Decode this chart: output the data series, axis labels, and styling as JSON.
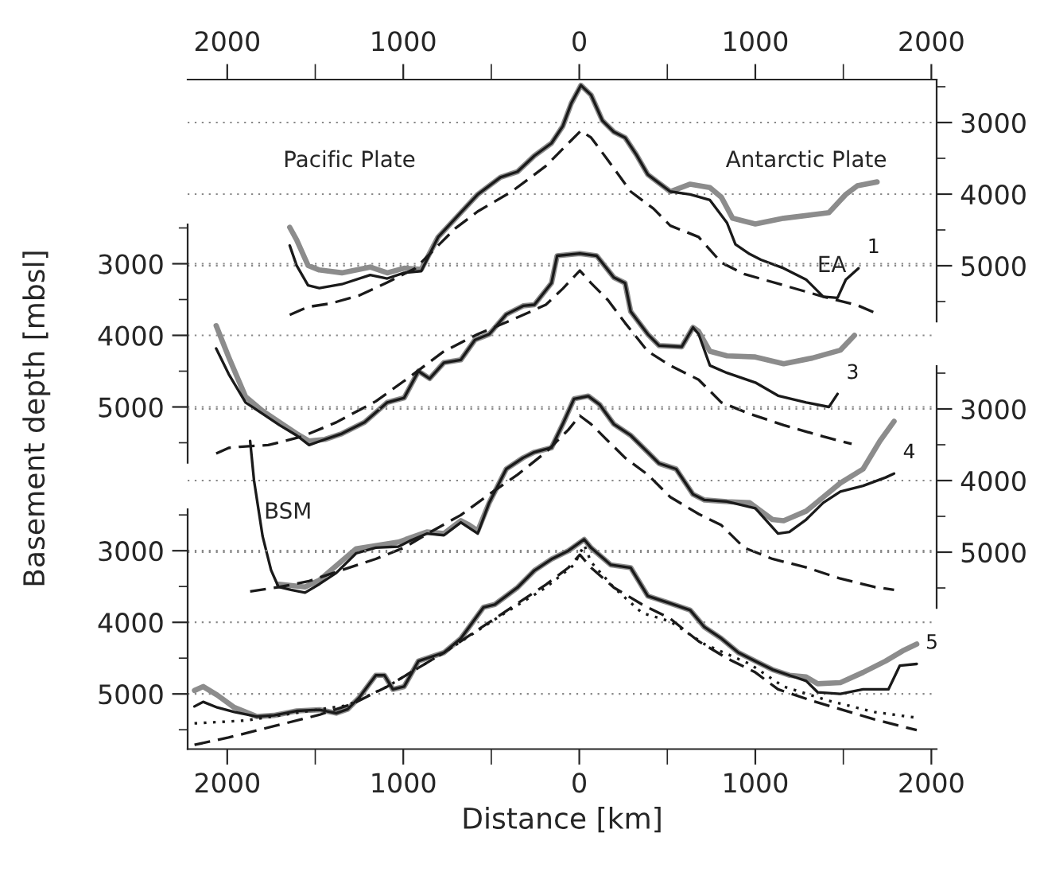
{
  "chart_data": [
    {
      "type": "line",
      "ylabel": "Basement depth [mbsl]",
      "xlim": [
        -2225,
        2030
      ],
      "x2lim": [
        -2225,
        2030
      ],
      "x2ticks": [
        {
          "value": -2000,
          "label": "2000"
        },
        {
          "value": -1500,
          "label": null
        },
        {
          "value": -1000,
          "label": "1000"
        },
        {
          "value": -500,
          "label": null
        },
        0,
        {
          "value": 500,
          "label": null
        },
        1000,
        {
          "value": 1500,
          "label": null
        },
        2000
      ],
      "ylim": [
        5780,
        2400
      ],
      "yticks": [
        {
          "value": 2500,
          "label": null
        },
        3000,
        {
          "value": 3500,
          "label": null
        },
        4000,
        {
          "value": 4500,
          "label": null
        },
        5000,
        {
          "value": 5500,
          "label": null
        }
      ],
      "grid": "y",
      "tick_labels": "y",
      "annotations": [
        "Pacific Plate",
        "Antarctic Plate",
        "EA"
      ],
      "series": [
        {
          "color": "#8c8c8c",
          "line_style": "solid",
          "x": [
            -1645,
            -1606,
            -1541,
            -1477,
            -1349,
            -1188,
            -1091,
            -995,
            -898,
            -802,
            -673,
            -577,
            -448,
            -351,
            -255,
            -158,
            -94,
            -46,
            9,
            67,
            131,
            196,
            260,
            324,
            389,
            453,
            517,
            630,
            742,
            807,
            871,
            1000,
            1161,
            1418,
            1514,
            1579,
            1692
          ],
          "values": [
            4464,
            4638,
            4996,
            5059,
            5099,
            5019,
            5099,
            5035,
            5051,
            4599,
            4258,
            4004,
            3765,
            3686,
            3464,
            3289,
            3051,
            2734,
            2480,
            2615,
            2972,
            3130,
            3210,
            3448,
            3726,
            3845,
            3964,
            3861,
            3908,
            4043,
            4337,
            4416,
            4337,
            4258,
            4004,
            3884,
            3829
          ]
        },
        {
          "name": "1",
          "color": "#1a1a1a",
          "line_style": "solid",
          "x": [
            -1645,
            -1606,
            -1541,
            -1477,
            -1349,
            -1188,
            -1091,
            -995,
            -898,
            -802,
            -673,
            -577,
            -448,
            -351,
            -255,
            -158,
            -94,
            -46,
            9,
            67,
            131,
            196,
            260,
            324,
            389,
            453,
            517,
            630,
            742,
            839,
            887,
            968,
            1032,
            1161,
            1289,
            1386,
            1467,
            1514,
            1586
          ],
          "values": [
            4718,
            4996,
            5273,
            5313,
            5258,
            5130,
            5178,
            5099,
            5075,
            4599,
            4258,
            4004,
            3765,
            3686,
            3464,
            3289,
            3051,
            2734,
            2480,
            2615,
            2972,
            3130,
            3210,
            3448,
            3726,
            3845,
            3964,
            4004,
            4083,
            4400,
            4702,
            4837,
            4916,
            5035,
            5194,
            5432,
            5448,
            5194,
            5035
          ]
        },
        {
          "color": "#1a1a1a",
          "line_style": "dashed",
          "x": [
            -1645,
            -1541,
            -1413,
            -1252,
            -1091,
            -931,
            -834,
            -705,
            -577,
            -384,
            -190,
            -62,
            9,
            67,
            163,
            292,
            421,
            517,
            678,
            807,
            936,
            1161,
            1386,
            1579,
            1692
          ],
          "values": [
            5686,
            5575,
            5527,
            5416,
            5234,
            5035,
            4797,
            4480,
            4242,
            3964,
            3607,
            3289,
            3115,
            3210,
            3527,
            3964,
            4202,
            4440,
            4599,
            4956,
            5115,
            5273,
            5432,
            5551,
            5670
          ]
        }
      ]
    },
    {
      "type": "line",
      "xlim": [
        -2225,
        2030
      ],
      "ylim": [
        5780,
        2450
      ],
      "yticks": [
        {
          "value": 2500,
          "label": null
        },
        3000,
        {
          "value": 3500,
          "label": null
        },
        4000,
        {
          "value": 4500,
          "label": null
        },
        5000,
        {
          "value": 5500,
          "label": null
        }
      ],
      "grid": "y",
      "tick_labels": "y",
      "series": [
        {
          "color": "#8c8c8c",
          "line_style": "solid",
          "x": [
            -2063,
            -1992,
            -1896,
            -1799,
            -1703,
            -1606,
            -1535,
            -1445,
            -1349,
            -1220,
            -1091,
            -995,
            -914,
            -850,
            -769,
            -673,
            -593,
            -512,
            -415,
            -319,
            -255,
            -158,
            -126,
            3,
            99,
            196,
            260,
            292,
            389,
            453,
            582,
            646,
            678,
            742,
            839,
            1000,
            1161,
            1322,
            1483,
            1563
          ],
          "values": [
            3865,
            4302,
            4857,
            5056,
            5215,
            5373,
            5476,
            5453,
            5373,
            5215,
            4937,
            4873,
            4500,
            4603,
            4381,
            4342,
            4064,
            3984,
            3707,
            3588,
            3572,
            3270,
            2889,
            2857,
            2889,
            3191,
            3270,
            3667,
            3984,
            4143,
            4159,
            3889,
            3945,
            4223,
            4286,
            4302,
            4397,
            4318,
            4207,
            4000
          ]
        },
        {
          "name": "3",
          "color": "#1a1a1a",
          "line_style": "solid",
          "x": [
            -2063,
            -1992,
            -1896,
            -1799,
            -1703,
            -1606,
            -1535,
            -1445,
            -1349,
            -1220,
            -1091,
            -995,
            -914,
            -850,
            -769,
            -673,
            -593,
            -512,
            -415,
            -319,
            -255,
            -158,
            -126,
            3,
            99,
            196,
            260,
            292,
            389,
            453,
            582,
            646,
            678,
            742,
            839,
            1000,
            1129,
            1289,
            1418,
            1467
          ],
          "values": [
            4183,
            4540,
            4937,
            5096,
            5254,
            5397,
            5532,
            5453,
            5373,
            5215,
            4937,
            4873,
            4500,
            4603,
            4381,
            4342,
            4064,
            3984,
            3707,
            3588,
            3572,
            3270,
            2889,
            2857,
            2889,
            3191,
            3270,
            3667,
            3984,
            4143,
            4159,
            3889,
            3984,
            4421,
            4524,
            4659,
            4842,
            4937,
            5000,
            4818
          ]
        },
        {
          "color": "#1a1a1a",
          "line_style": "dashed",
          "x": [
            -2063,
            -1992,
            -1928,
            -1767,
            -1574,
            -1381,
            -1156,
            -963,
            -769,
            -577,
            -384,
            -190,
            -94,
            3,
            67,
            163,
            260,
            389,
            517,
            678,
            807,
            968,
            1161,
            1386,
            1547
          ],
          "values": [
            5651,
            5572,
            5556,
            5532,
            5413,
            5215,
            4921,
            4580,
            4223,
            3984,
            3786,
            3572,
            3349,
            3095,
            3270,
            3508,
            3826,
            4223,
            4421,
            4619,
            4937,
            5096,
            5254,
            5413,
            5516
          ]
        }
      ]
    },
    {
      "type": "line",
      "annotations": [
        "BSM"
      ],
      "xlim": [
        -2225,
        2030
      ],
      "ylim": [
        5780,
        2400
      ],
      "yticks": [
        {
          "value": 2500,
          "label": null
        },
        3000,
        {
          "value": 3500,
          "label": null
        },
        4000,
        {
          "value": 4500,
          "label": null
        },
        5000,
        {
          "value": 5500,
          "label": null
        }
      ],
      "grid": "y",
      "tick_labels": "y",
      "series": [
        {
          "color": "#8c8c8c",
          "line_style": "solid",
          "x": [
            -1709,
            -1558,
            -1477,
            -1268,
            -1027,
            -866,
            -769,
            -673,
            -625,
            -577,
            -512,
            -415,
            -319,
            -255,
            -158,
            -94,
            -30,
            51,
            115,
            196,
            292,
            389,
            453,
            550,
            646,
            711,
            839,
            968,
            1097,
            1161,
            1289,
            1386,
            1483,
            1612,
            1708,
            1788
          ],
          "values": [
            5447,
            5486,
            5392,
            4953,
            4859,
            4718,
            4741,
            4561,
            4623,
            4702,
            4310,
            3839,
            3682,
            3604,
            3541,
            3212,
            2859,
            2820,
            2937,
            3212,
            3369,
            3604,
            3761,
            3839,
            4192,
            4271,
            4294,
            4310,
            4545,
            4561,
            4427,
            4231,
            4035,
            3839,
            3447,
            3173
          ]
        },
        {
          "name": "4",
          "color": "#1a1a1a",
          "line_style": "solid",
          "x": [
            -1870,
            -1848,
            -1799,
            -1751,
            -1709,
            -1638,
            -1558,
            -1477,
            -1381,
            -1268,
            -1156,
            -1027,
            -963,
            -866,
            -769,
            -673,
            -625,
            -577,
            -512,
            -415,
            -319,
            -255,
            -158,
            -94,
            -30,
            51,
            115,
            196,
            292,
            389,
            453,
            550,
            646,
            711,
            839,
            1000,
            1129,
            1193,
            1289,
            1386,
            1483,
            1612,
            1740,
            1788
          ],
          "values": [
            3447,
            3996,
            4780,
            5251,
            5486,
            5526,
            5565,
            5447,
            5290,
            5016,
            4937,
            4922,
            4843,
            4741,
            4764,
            4584,
            4663,
            4741,
            4310,
            3839,
            3682,
            3604,
            3541,
            3212,
            2859,
            2820,
            2937,
            3212,
            3369,
            3604,
            3761,
            3839,
            4192,
            4271,
            4294,
            4388,
            4741,
            4718,
            4545,
            4310,
            4153,
            4074,
            3957,
            3902
          ]
        },
        {
          "color": "#1a1a1a",
          "line_style": "dashed",
          "x": [
            -1870,
            -1703,
            -1541,
            -1349,
            -1156,
            -995,
            -834,
            -673,
            -512,
            -351,
            -190,
            -62,
            3,
            67,
            163,
            260,
            389,
            517,
            678,
            807,
            936,
            1097,
            1289,
            1483,
            1676,
            1788
          ],
          "values": [
            5549,
            5486,
            5408,
            5251,
            5094,
            4937,
            4702,
            4482,
            4192,
            3918,
            3604,
            3290,
            3094,
            3212,
            3447,
            3682,
            3918,
            4231,
            4467,
            4623,
            4937,
            5094,
            5212,
            5369,
            5486,
            5526
          ]
        }
      ]
    },
    {
      "type": "line",
      "xlabel": "Distance [km]",
      "xlim": [
        -2225,
        2030
      ],
      "xticks": [
        {
          "value": -2000,
          "label": "2000"
        },
        {
          "value": -1500,
          "label": null
        },
        {
          "value": -1000,
          "label": "1000"
        },
        {
          "value": -500,
          "label": null
        },
        0,
        {
          "value": 500,
          "label": null
        },
        1000,
        {
          "value": 1500,
          "label": null
        },
        2000
      ],
      "ylim": [
        5770,
        2420
      ],
      "yticks": [
        {
          "value": 2500,
          "label": null
        },
        3000,
        {
          "value": 3500,
          "label": null
        },
        4000,
        {
          "value": 4500,
          "label": null
        },
        5000,
        {
          "value": 5500,
          "label": null
        }
      ],
      "grid": "y",
      "series": [
        {
          "color": "#8c8c8c",
          "line_style": "solid",
          "x": [
            -2186,
            -2137,
            -2057,
            -1960,
            -1832,
            -1735,
            -1606,
            -1477,
            -1381,
            -1316,
            -1252,
            -1156,
            -1107,
            -1059,
            -995,
            -914,
            -769,
            -673,
            -544,
            -480,
            -351,
            -255,
            -158,
            -62,
            28,
            67,
            179,
            292,
            389,
            517,
            630,
            711,
            807,
            904,
            1000,
            1097,
            1193,
            1289,
            1354,
            1483,
            1612,
            1740,
            1837,
            1917
          ],
          "values": [
            4952,
            4897,
            5016,
            5189,
            5316,
            5300,
            5237,
            5221,
            5268,
            5213,
            5055,
            4739,
            4739,
            4936,
            4897,
            4541,
            4423,
            4225,
            3790,
            3751,
            3514,
            3276,
            3118,
            3000,
            2842,
            2960,
            3197,
            3237,
            3632,
            3735,
            3830,
            4067,
            4225,
            4423,
            4541,
            4660,
            4739,
            4763,
            4857,
            4842,
            4699,
            4541,
            4399,
            4304
          ]
        },
        {
          "name": "5",
          "color": "#1a1a1a",
          "line_style": "solid",
          "x": [
            -2186,
            -2137,
            -2057,
            -1960,
            -1832,
            -1735,
            -1606,
            -1477,
            -1381,
            -1316,
            -1252,
            -1156,
            -1107,
            -1059,
            -995,
            -914,
            -769,
            -673,
            -544,
            -480,
            -351,
            -255,
            -158,
            -62,
            28,
            67,
            179,
            292,
            389,
            517,
            630,
            711,
            807,
            904,
            1000,
            1097,
            1193,
            1289,
            1354,
            1483,
            1612,
            1756,
            1821,
            1917
          ],
          "values": [
            5174,
            5110,
            5189,
            5253,
            5316,
            5300,
            5237,
            5221,
            5268,
            5213,
            5055,
            4739,
            4739,
            4936,
            4897,
            4541,
            4423,
            4225,
            3790,
            3751,
            3514,
            3276,
            3118,
            3000,
            2842,
            2960,
            3197,
            3237,
            3632,
            3735,
            3830,
            4067,
            4225,
            4423,
            4541,
            4660,
            4739,
            4818,
            4976,
            5000,
            4936,
            4936,
            4604,
            4581
          ]
        },
        {
          "color": "#1a1a1a",
          "line_style": "dashed",
          "x": [
            -2186,
            -1992,
            -1735,
            -1477,
            -1284,
            -1091,
            -931,
            -769,
            -577,
            -384,
            -190,
            -62,
            3,
            67,
            196,
            357,
            517,
            678,
            839,
            1000,
            1129,
            1322,
            1483,
            1676,
            1917
          ],
          "values": [
            5711,
            5608,
            5450,
            5292,
            5134,
            4897,
            4660,
            4423,
            4106,
            3790,
            3474,
            3237,
            3055,
            3237,
            3514,
            3751,
            3948,
            4265,
            4502,
            4699,
            4936,
            5095,
            5213,
            5355,
            5506
          ]
        },
        {
          "color": "#1a1a1a",
          "line_style": "dotted",
          "x": [
            -2186,
            -1896,
            -1574,
            -1316,
            -1091,
            -769,
            -448,
            -190,
            -30,
            28,
            67,
            196,
            357,
            517,
            711,
            968,
            1161,
            1418,
            1676,
            1917
          ],
          "values": [
            5411,
            5371,
            5253,
            5158,
            4897,
            4423,
            3909,
            3514,
            3197,
            2921,
            3158,
            3514,
            3869,
            3988,
            4304,
            4581,
            4897,
            5095,
            5253,
            5332
          ]
        }
      ]
    }
  ]
}
